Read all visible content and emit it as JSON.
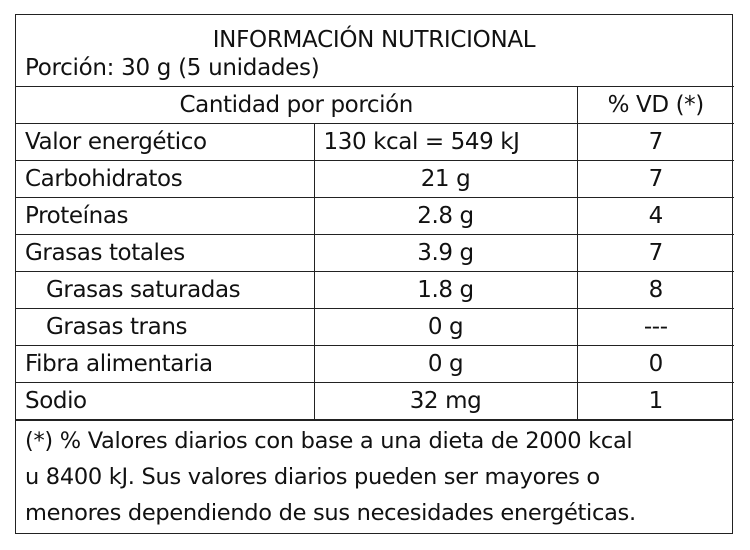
{
  "title": "INFORMACIÓN NUTRICIONAL",
  "portion": "Porción: 30 g (5 unidades)",
  "header": {
    "amount": "Cantidad por porción",
    "dv": "% VD (*)"
  },
  "rows": [
    {
      "name": "Valor energético",
      "amount": "130 kcal = 549 kJ",
      "dv": "7"
    },
    {
      "name": "Carbohidratos",
      "amount": "21 g",
      "dv": "7"
    },
    {
      "name": "Proteínas",
      "amount": "2.8 g",
      "dv": "4"
    },
    {
      "name": "Grasas totales",
      "amount": "3.9 g",
      "dv": "7"
    },
    {
      "name": "Grasas saturadas",
      "amount": "1.8 g",
      "dv": "8"
    },
    {
      "name": "Grasas trans",
      "amount": "0 g",
      "dv": "---"
    },
    {
      "name": "Fibra alimentaria",
      "amount": "0 g",
      "dv": "0"
    },
    {
      "name": "Sodio",
      "amount": "32 mg",
      "dv": "1"
    }
  ],
  "footnote": {
    "line1": "(*) % Valores diarios con base a una dieta de 2000 kcal",
    "line2": "u 8400 kJ. Sus valores diarios pueden ser mayores o",
    "line3": "menores dependiendo de sus necesidades energéticas."
  }
}
